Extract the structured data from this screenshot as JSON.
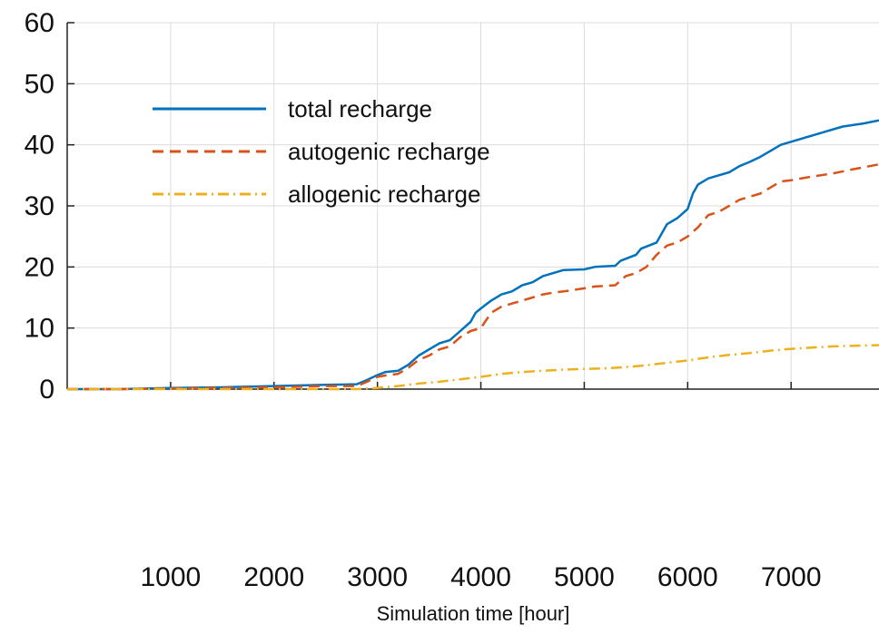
{
  "chart_data": {
    "type": "line",
    "title": "",
    "xlabel": "Simulation time [hour]",
    "ylabel": "",
    "xlim": [
      0,
      7850
    ],
    "ylim": [
      0,
      60
    ],
    "grid": true,
    "legend_position": "top-left",
    "x_ticks": [
      1000,
      2000,
      3000,
      4000,
      5000,
      6000,
      7000
    ],
    "x_tick_labels": [
      "1000",
      "2000",
      "3000",
      "4000",
      "5000",
      "6000",
      "7000"
    ],
    "y_ticks": [
      0,
      10,
      20,
      30,
      40,
      50,
      60
    ],
    "y_tick_labels": [
      "0",
      "10",
      "20",
      "30",
      "40",
      "50",
      "60"
    ],
    "series": [
      {
        "name": "total recharge",
        "color": "#0072BD",
        "style": "solid",
        "points": [
          [
            0,
            0
          ],
          [
            500,
            0
          ],
          [
            1000,
            0.2
          ],
          [
            1500,
            0.3
          ],
          [
            2000,
            0.5
          ],
          [
            2500,
            0.7
          ],
          [
            2800,
            0.8
          ],
          [
            2900,
            1.5
          ],
          [
            3000,
            2.3
          ],
          [
            3080,
            2.8
          ],
          [
            3200,
            3.0
          ],
          [
            3300,
            4.0
          ],
          [
            3400,
            5.5
          ],
          [
            3500,
            6.5
          ],
          [
            3600,
            7.5
          ],
          [
            3700,
            8.0
          ],
          [
            3800,
            9.5
          ],
          [
            3900,
            11.0
          ],
          [
            3950,
            12.5
          ],
          [
            4000,
            13.2
          ],
          [
            4100,
            14.5
          ],
          [
            4200,
            15.5
          ],
          [
            4300,
            16.0
          ],
          [
            4400,
            17.0
          ],
          [
            4500,
            17.5
          ],
          [
            4600,
            18.5
          ],
          [
            4700,
            19.0
          ],
          [
            4800,
            19.5
          ],
          [
            5000,
            19.6
          ],
          [
            5100,
            20.0
          ],
          [
            5300,
            20.2
          ],
          [
            5350,
            21.0
          ],
          [
            5500,
            22.0
          ],
          [
            5550,
            23.0
          ],
          [
            5700,
            24.0
          ],
          [
            5800,
            27.0
          ],
          [
            5900,
            28.0
          ],
          [
            6000,
            29.5
          ],
          [
            6050,
            32.0
          ],
          [
            6100,
            33.5
          ],
          [
            6200,
            34.5
          ],
          [
            6300,
            35.0
          ],
          [
            6400,
            35.5
          ],
          [
            6500,
            36.5
          ],
          [
            6600,
            37.2
          ],
          [
            6700,
            38.0
          ],
          [
            6800,
            39.0
          ],
          [
            6900,
            40.0
          ],
          [
            7000,
            40.5
          ],
          [
            7100,
            41.0
          ],
          [
            7300,
            42.0
          ],
          [
            7500,
            43.0
          ],
          [
            7700,
            43.5
          ],
          [
            7850,
            44.0
          ]
        ]
      },
      {
        "name": "autogenic recharge",
        "color": "#D95319",
        "style": "dashed",
        "points": [
          [
            0,
            0
          ],
          [
            500,
            0
          ],
          [
            1000,
            0.1
          ],
          [
            1500,
            0.2
          ],
          [
            2000,
            0.3
          ],
          [
            2500,
            0.5
          ],
          [
            2800,
            0.5
          ],
          [
            2900,
            1.2
          ],
          [
            3000,
            2.0
          ],
          [
            3100,
            2.3
          ],
          [
            3200,
            2.5
          ],
          [
            3300,
            3.5
          ],
          [
            3400,
            4.8
          ],
          [
            3500,
            5.5
          ],
          [
            3600,
            6.5
          ],
          [
            3700,
            7.0
          ],
          [
            3800,
            8.5
          ],
          [
            3900,
            9.5
          ],
          [
            4000,
            10.0
          ],
          [
            4100,
            12.5
          ],
          [
            4200,
            13.5
          ],
          [
            4300,
            14.0
          ],
          [
            4400,
            14.5
          ],
          [
            4500,
            15.0
          ],
          [
            4600,
            15.5
          ],
          [
            4700,
            15.8
          ],
          [
            4800,
            16.0
          ],
          [
            5000,
            16.5
          ],
          [
            5100,
            16.8
          ],
          [
            5300,
            17.0
          ],
          [
            5400,
            18.5
          ],
          [
            5500,
            19.0
          ],
          [
            5600,
            20.0
          ],
          [
            5700,
            22.0
          ],
          [
            5800,
            23.5
          ],
          [
            5900,
            24.0
          ],
          [
            6000,
            25.0
          ],
          [
            6100,
            26.5
          ],
          [
            6200,
            28.5
          ],
          [
            6300,
            29.0
          ],
          [
            6400,
            30.0
          ],
          [
            6500,
            31.0
          ],
          [
            6600,
            31.5
          ],
          [
            6700,
            32.0
          ],
          [
            6800,
            33.0
          ],
          [
            6900,
            34.0
          ],
          [
            7000,
            34.2
          ],
          [
            7200,
            34.8
          ],
          [
            7400,
            35.3
          ],
          [
            7600,
            36.0
          ],
          [
            7850,
            36.8
          ]
        ]
      },
      {
        "name": "allogenic recharge",
        "color": "#EDB120",
        "style": "dash-dot",
        "points": [
          [
            0,
            0
          ],
          [
            1000,
            0
          ],
          [
            2000,
            0
          ],
          [
            2800,
            0
          ],
          [
            3000,
            0.2
          ],
          [
            3200,
            0.5
          ],
          [
            3400,
            0.9
          ],
          [
            3600,
            1.2
          ],
          [
            3800,
            1.6
          ],
          [
            4000,
            2.0
          ],
          [
            4200,
            2.5
          ],
          [
            4400,
            2.8
          ],
          [
            4600,
            3.0
          ],
          [
            4800,
            3.2
          ],
          [
            5000,
            3.3
          ],
          [
            5200,
            3.4
          ],
          [
            5400,
            3.6
          ],
          [
            5600,
            3.9
          ],
          [
            5800,
            4.3
          ],
          [
            6000,
            4.7
          ],
          [
            6200,
            5.2
          ],
          [
            6400,
            5.6
          ],
          [
            6600,
            5.9
          ],
          [
            6800,
            6.3
          ],
          [
            7000,
            6.6
          ],
          [
            7200,
            6.8
          ],
          [
            7400,
            7.0
          ],
          [
            7600,
            7.1
          ],
          [
            7850,
            7.2
          ]
        ]
      }
    ]
  }
}
